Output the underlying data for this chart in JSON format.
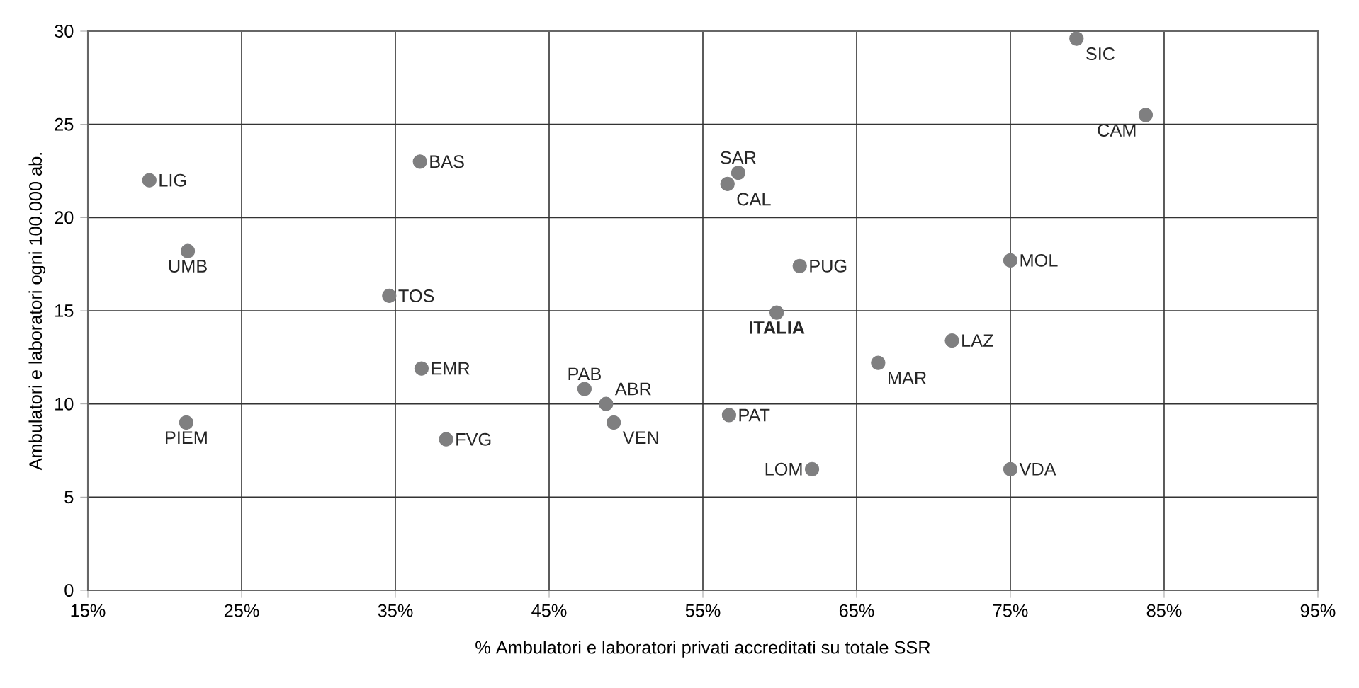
{
  "chart_data": {
    "type": "scatter",
    "xlabel": "% Ambulatori e laboratori privati accreditati su totale SSR",
    "ylabel": "Ambulatori e laboratori ogni 100.000 ab.",
    "xlim": [
      15,
      95
    ],
    "ylim": [
      0,
      30
    ],
    "xticks": [
      {
        "value": 15,
        "label": "15%"
      },
      {
        "value": 25,
        "label": "25%"
      },
      {
        "value": 35,
        "label": "35%"
      },
      {
        "value": 45,
        "label": "45%"
      },
      {
        "value": 55,
        "label": "55%"
      },
      {
        "value": 65,
        "label": "65%"
      },
      {
        "value": 75,
        "label": "75%"
      },
      {
        "value": 85,
        "label": "85%"
      },
      {
        "value": 95,
        "label": "95%"
      }
    ],
    "yticks": [
      0,
      5,
      10,
      15,
      20,
      25,
      30
    ],
    "grid": true,
    "marker": "circle",
    "series": [
      {
        "color": "#7f7f80",
        "x": [
          19.0,
          21.5,
          21.4,
          36.6,
          34.6,
          36.7,
          38.3,
          47.3,
          48.7,
          49.2,
          57.3,
          56.6,
          61.3,
          59.8,
          56.7,
          62.1,
          66.4,
          71.2,
          75.0,
          75.0,
          79.3,
          83.8
        ],
        "values": [
          22.0,
          18.2,
          9.0,
          23.0,
          15.8,
          11.9,
          8.1,
          10.8,
          10.0,
          9.0,
          22.4,
          21.8,
          17.4,
          14.9,
          9.4,
          6.5,
          12.2,
          13.4,
          17.7,
          6.5,
          29.6,
          25.5
        ]
      }
    ],
    "annotations": [
      {
        "text": "LIG",
        "x": 19.0,
        "y": 22.0
      },
      {
        "text": "UMB",
        "x": 21.5,
        "y": 18.2
      },
      {
        "text": "PIEM",
        "x": 21.4,
        "y": 9.0
      },
      {
        "text": "BAS",
        "x": 36.6,
        "y": 23.0
      },
      {
        "text": "TOS",
        "x": 34.6,
        "y": 15.8
      },
      {
        "text": "EMR",
        "x": 36.7,
        "y": 11.9
      },
      {
        "text": "FVG",
        "x": 38.3,
        "y": 8.1
      },
      {
        "text": "PAB",
        "x": 47.3,
        "y": 10.8
      },
      {
        "text": "ABR",
        "x": 48.7,
        "y": 10.0
      },
      {
        "text": "VEN",
        "x": 49.2,
        "y": 9.0
      },
      {
        "text": "SAR",
        "x": 57.3,
        "y": 22.4
      },
      {
        "text": "CAL",
        "x": 56.6,
        "y": 21.8
      },
      {
        "text": "PUG",
        "x": 61.3,
        "y": 17.4
      },
      {
        "text": "ITALIA",
        "x": 59.8,
        "y": 14.9
      },
      {
        "text": "PAT",
        "x": 56.7,
        "y": 9.4
      },
      {
        "text": "LOM",
        "x": 62.1,
        "y": 6.5
      },
      {
        "text": "MAR",
        "x": 66.4,
        "y": 12.2
      },
      {
        "text": "LAZ",
        "x": 71.2,
        "y": 13.4
      },
      {
        "text": "MOL",
        "x": 75.0,
        "y": 17.7
      },
      {
        "text": "VDA",
        "x": 75.0,
        "y": 6.5
      },
      {
        "text": "SIC",
        "x": 79.3,
        "y": 29.6
      },
      {
        "text": "CAM",
        "x": 83.8,
        "y": 25.5
      }
    ]
  }
}
